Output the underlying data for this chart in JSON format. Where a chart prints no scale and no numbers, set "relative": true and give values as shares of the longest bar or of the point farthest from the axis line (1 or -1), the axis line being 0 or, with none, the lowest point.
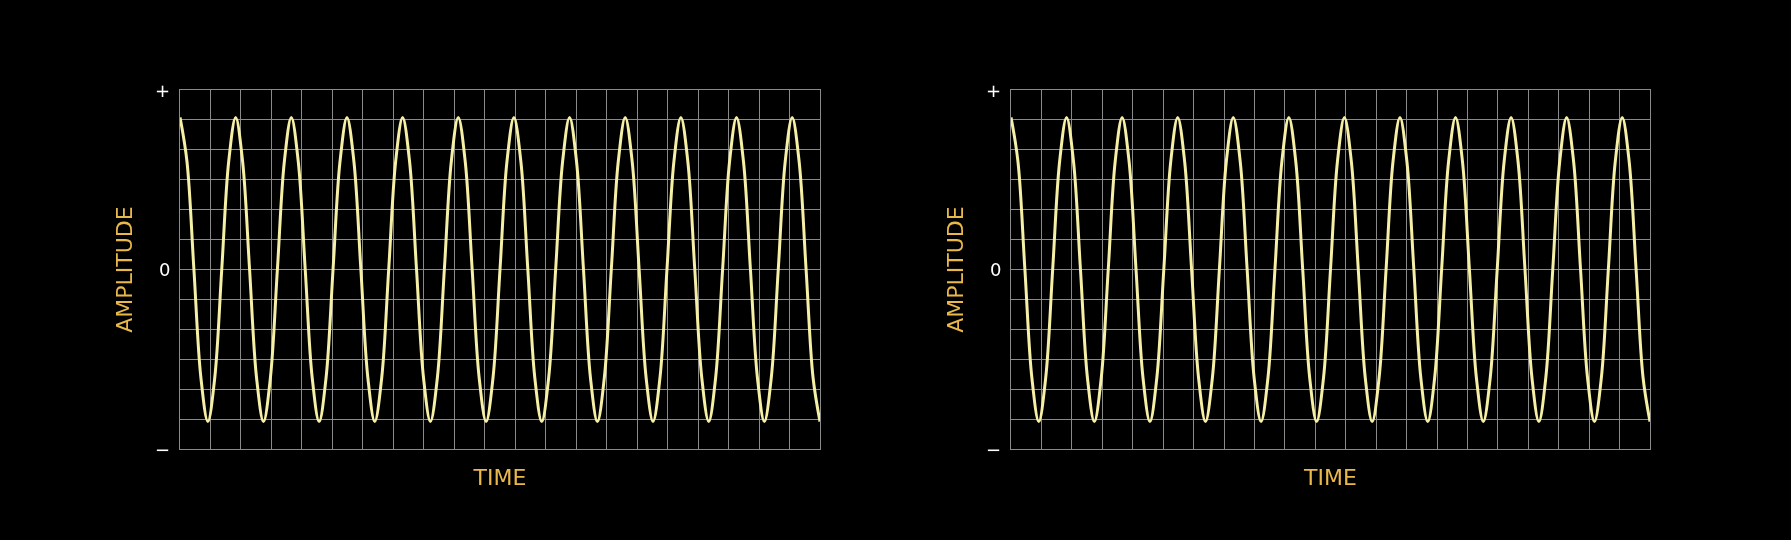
{
  "chart_data": [
    {
      "type": "line",
      "xlabel": "TIME",
      "ylabel": "AMPLITUDE",
      "relative": true,
      "tick_labels": false,
      "grid": true,
      "marker": "none",
      "line_style": "solid",
      "annotations": [
        "+",
        "0",
        "−"
      ],
      "categories": [
        null,
        null,
        null,
        null,
        null,
        null,
        null,
        null,
        null,
        null,
        null,
        null,
        null,
        null,
        null,
        null,
        null,
        null,
        null,
        null,
        null,
        null,
        null,
        null,
        null,
        null,
        null,
        null,
        null,
        null,
        null,
        null,
        null,
        null,
        null,
        null,
        null,
        null,
        null,
        null,
        null,
        null,
        null,
        null,
        null,
        null,
        null,
        null,
        null,
        null,
        null,
        null,
        null,
        null,
        null,
        null,
        null,
        null,
        null,
        null,
        null,
        null,
        null,
        null,
        null,
        null,
        null,
        null,
        null,
        null,
        null,
        null,
        null,
        null,
        null,
        null,
        null,
        null,
        null,
        null,
        null,
        null,
        null,
        null,
        null,
        null,
        null,
        null,
        null,
        null,
        null,
        null,
        null
      ],
      "series": [
        {
          "color": "#f6efa6",
          "values": [
            1,
            0.71,
            0,
            -0.71,
            -1,
            -0.71,
            0,
            0.71,
            1,
            0.71,
            0,
            -0.71,
            -1,
            -0.71,
            0,
            0.71,
            1,
            0.71,
            0,
            -0.71,
            -1,
            -0.71,
            0,
            0.71,
            1,
            0.71,
            0,
            -0.71,
            -1,
            -0.71,
            0,
            0.71,
            1,
            0.71,
            0,
            -0.71,
            -1,
            -0.71,
            0,
            0.71,
            1,
            0.71,
            0,
            -0.71,
            -1,
            -0.71,
            0,
            0.71,
            1,
            0.71,
            0,
            -0.71,
            -1,
            -0.71,
            0,
            0.71,
            1,
            0.71,
            0,
            -0.71,
            -1,
            -0.71,
            0,
            0.71,
            1,
            0.71,
            0,
            -0.71,
            -1,
            -0.71,
            0,
            0.71,
            1,
            0.71,
            0,
            -0.71,
            -1,
            -0.71,
            0,
            0.71,
            1,
            0.71,
            0,
            -0.71,
            -1,
            -0.71,
            0,
            0.71,
            1,
            0.71,
            0,
            -0.71,
            -1
          ]
        }
      ]
    },
    {
      "type": "line",
      "xlabel": "TIME",
      "ylabel": "AMPLITUDE",
      "relative": true,
      "tick_labels": false,
      "grid": true,
      "marker": "none",
      "line_style": "solid",
      "annotations": [
        "+",
        "0",
        "−"
      ],
      "categories": [
        null,
        null,
        null,
        null,
        null,
        null,
        null,
        null,
        null,
        null,
        null,
        null,
        null,
        null,
        null,
        null,
        null,
        null,
        null,
        null,
        null,
        null,
        null,
        null,
        null,
        null,
        null,
        null,
        null,
        null,
        null,
        null,
        null,
        null,
        null,
        null,
        null,
        null,
        null,
        null,
        null,
        null,
        null,
        null,
        null,
        null,
        null,
        null,
        null,
        null,
        null,
        null,
        null,
        null,
        null,
        null,
        null,
        null,
        null,
        null,
        null,
        null,
        null,
        null,
        null,
        null,
        null,
        null,
        null,
        null,
        null,
        null,
        null,
        null,
        null,
        null,
        null,
        null,
        null,
        null,
        null,
        null,
        null,
        null,
        null,
        null,
        null,
        null,
        null,
        null,
        null,
        null,
        null
      ],
      "series": [
        {
          "color": "#f6efa6",
          "values": [
            1,
            0.71,
            0,
            -0.71,
            -1,
            -0.71,
            0,
            0.71,
            1,
            0.71,
            0,
            -0.71,
            -1,
            -0.71,
            0,
            0.71,
            1,
            0.71,
            0,
            -0.71,
            -1,
            -0.71,
            0,
            0.71,
            1,
            0.71,
            0,
            -0.71,
            -1,
            -0.71,
            0,
            0.71,
            1,
            0.71,
            0,
            -0.71,
            -1,
            -0.71,
            0,
            0.71,
            1,
            0.71,
            0,
            -0.71,
            -1,
            -0.71,
            0,
            0.71,
            1,
            0.71,
            0,
            -0.71,
            -1,
            -0.71,
            0,
            0.71,
            1,
            0.71,
            0,
            -0.71,
            -1,
            -0.71,
            0,
            0.71,
            1,
            0.71,
            0,
            -0.71,
            -1,
            -0.71,
            0,
            0.71,
            1,
            0.71,
            0,
            -0.71,
            -1,
            -0.71,
            0,
            0.71,
            1,
            0.71,
            0,
            -0.71,
            -1,
            -0.71,
            0,
            0.71,
            1,
            0.71,
            0,
            -0.71,
            -1
          ]
        }
      ]
    }
  ]
}
